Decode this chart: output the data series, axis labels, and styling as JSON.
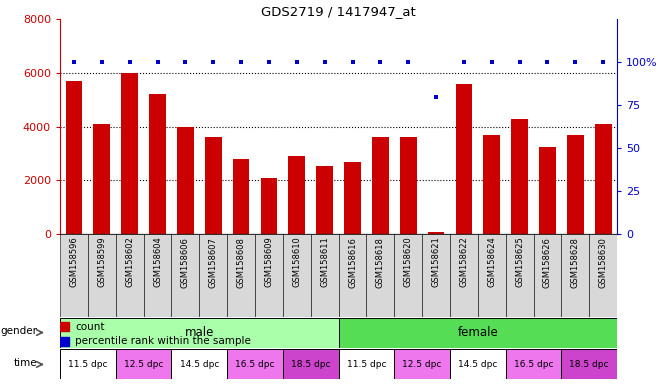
{
  "title": "GDS2719 / 1417947_at",
  "samples": [
    "GSM158596",
    "GSM158599",
    "GSM158602",
    "GSM158604",
    "GSM158606",
    "GSM158607",
    "GSM158608",
    "GSM158609",
    "GSM158610",
    "GSM158611",
    "GSM158616",
    "GSM158618",
    "GSM158620",
    "GSM158621",
    "GSM158622",
    "GSM158624",
    "GSM158625",
    "GSM158626",
    "GSM158628",
    "GSM158630"
  ],
  "counts": [
    5700,
    4100,
    6000,
    5200,
    4000,
    3600,
    2800,
    2100,
    2900,
    2550,
    2700,
    3600,
    3600,
    100,
    5600,
    3700,
    4300,
    3250,
    3700,
    4100
  ],
  "percentile_ranks": [
    100,
    100,
    100,
    100,
    100,
    100,
    100,
    100,
    100,
    100,
    100,
    100,
    100,
    80,
    100,
    100,
    100,
    100,
    100,
    100
  ],
  "bar_color": "#cc0000",
  "dot_color": "#0000cc",
  "ylim_left": [
    0,
    8000
  ],
  "ylim_right": [
    0,
    125
  ],
  "yticks_left": [
    0,
    2000,
    4000,
    6000,
    8000
  ],
  "yticks_right": [
    0,
    25,
    50,
    75,
    100
  ],
  "bg_color": "#ffffff",
  "axis_color_left": "#cc0000",
  "axis_color_right": "#0000cc",
  "male_color": "#aaffaa",
  "female_color": "#55dd55",
  "time_group_defs": [
    [
      0,
      2,
      "11.5 dpc",
      "#ffffff"
    ],
    [
      2,
      4,
      "12.5 dpc",
      "#ee77ee"
    ],
    [
      4,
      6,
      "14.5 dpc",
      "#ffffff"
    ],
    [
      6,
      8,
      "16.5 dpc",
      "#ee77ee"
    ],
    [
      8,
      10,
      "18.5 dpc",
      "#cc44cc"
    ],
    [
      10,
      12,
      "11.5 dpc",
      "#ffffff"
    ],
    [
      12,
      14,
      "12.5 dpc",
      "#ee77ee"
    ],
    [
      14,
      16,
      "14.5 dpc",
      "#ffffff"
    ],
    [
      16,
      18,
      "16.5 dpc",
      "#ee77ee"
    ],
    [
      18,
      20,
      "18.5 dpc",
      "#cc44cc"
    ]
  ],
  "fig_width": 6.6,
  "fig_height": 3.84,
  "dpi": 100
}
